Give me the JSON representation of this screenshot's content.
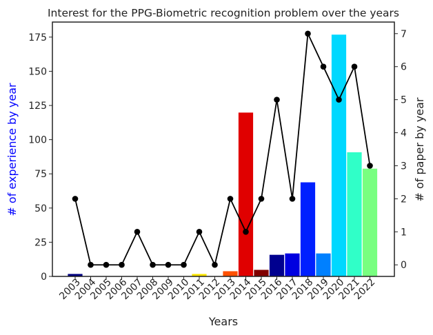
{
  "chart_data": {
    "type": "bar",
    "title": "Interest for the PPG-Biometric recognition problem over the years",
    "xlabel": "Years",
    "ylabel_left": "# of experience by year",
    "ylabel_right": "# of paper by year",
    "categories": [
      "2003",
      "2004",
      "2005",
      "2006",
      "2007",
      "2008",
      "2009",
      "2010",
      "2011",
      "2012",
      "2013",
      "2014",
      "2015",
      "2016",
      "2017",
      "2018",
      "2019",
      "2020",
      "2021",
      "2022"
    ],
    "series": [
      {
        "type": "bar",
        "axis": "left",
        "values": [
          2,
          0,
          0,
          0,
          0,
          0,
          0,
          0,
          2,
          0,
          4,
          120,
          5,
          16,
          17,
          69,
          17,
          177,
          91,
          79
        ],
        "colors": [
          "#000080",
          "#000080",
          "#000080",
          "#000080",
          "#000080",
          "#000080",
          "#000080",
          "#000080",
          "#ffe600",
          "#000080",
          "#ff5000",
          "#e00000",
          "#800000",
          "#00008f",
          "#0000e0",
          "#0020ff",
          "#0080ff",
          "#00d8ff",
          "#30ffc8",
          "#78ff80"
        ]
      },
      {
        "type": "line",
        "axis": "right",
        "color": "#000000",
        "values": [
          2,
          0,
          0,
          0,
          1,
          0,
          0,
          0,
          1,
          0,
          2,
          1,
          2,
          5,
          2,
          7,
          6,
          5,
          6,
          3
        ]
      }
    ],
    "ylim_left": [
      0,
      186
    ],
    "yticks_left": [
      0,
      25,
      50,
      75,
      100,
      125,
      150,
      175
    ],
    "ylim_right": [
      -0.35,
      7.35
    ],
    "yticks_right": [
      0,
      1,
      2,
      3,
      4,
      5,
      6,
      7
    ],
    "left_label_color": "#0000ff",
    "grid": false,
    "legend": "none"
  }
}
